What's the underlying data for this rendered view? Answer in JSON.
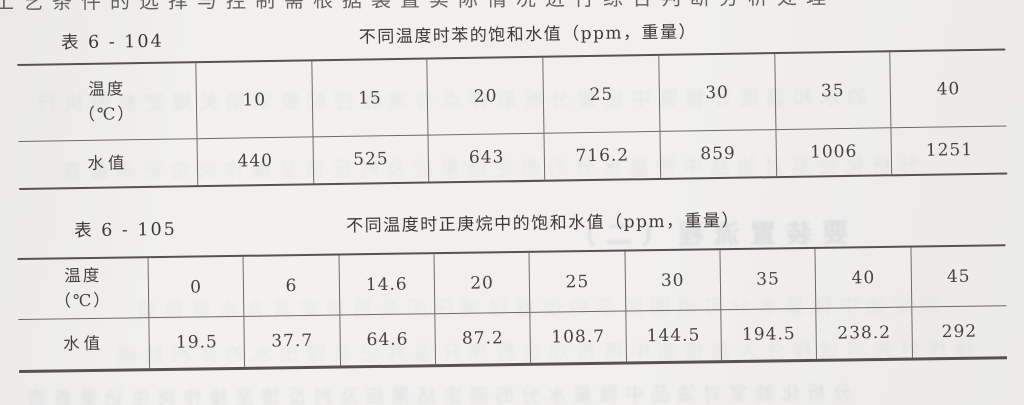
{
  "tables": [
    {
      "caption": "表 6 - 104",
      "title": "不同温度时苯的饱和水值（ppm，重量）",
      "header_label_line1": "温度",
      "header_label_line2": "（℃）",
      "value_label": "水值",
      "temperatures": [
        "10",
        "15",
        "20",
        "25",
        "30",
        "35",
        "40"
      ],
      "values": [
        "440",
        "525",
        "643",
        "716.2",
        "859",
        "1006",
        "1251"
      ]
    },
    {
      "caption": "表 6 - 105",
      "title": "不同温度时正庚烷中的饱和水值（ppm，重量）",
      "header_label_line1": "温度",
      "header_label_line2": "（℃）",
      "value_label": "水值",
      "temperatures": [
        "0",
        "6",
        "14.6",
        "20",
        "25",
        "30",
        "35",
        "40",
        "45"
      ],
      "values": [
        "19.5",
        "37.7",
        "64.6",
        "87.2",
        "108.7",
        "144.5",
        "194.5",
        "238.2",
        "292"
      ]
    }
  ],
  "decor": {
    "top_clipped_fragment": "工艺条件的选择与控制需根据装置实际情况进行综合判断分析处理",
    "bleedthrough": [
      "的水和温度计管路中设置分析取样点与流程控制要求相关规定参照执行",
      "分析化验室对油品中微量水分的测定结果应及时反馈至操作岗位记录备查",
      "要装置流程（二）",
      "测定油中微量水分可用图所示的仪器经减压闪蒸后测定其含水量数值",
      "操作时先将试样注入蒸馏瓶中再按规定程序升温并记录馏出水的体积数据"
    ]
  },
  "colors": {
    "paper": "#f0efed",
    "ink": "#444240",
    "table_line": "#6f6b67"
  }
}
